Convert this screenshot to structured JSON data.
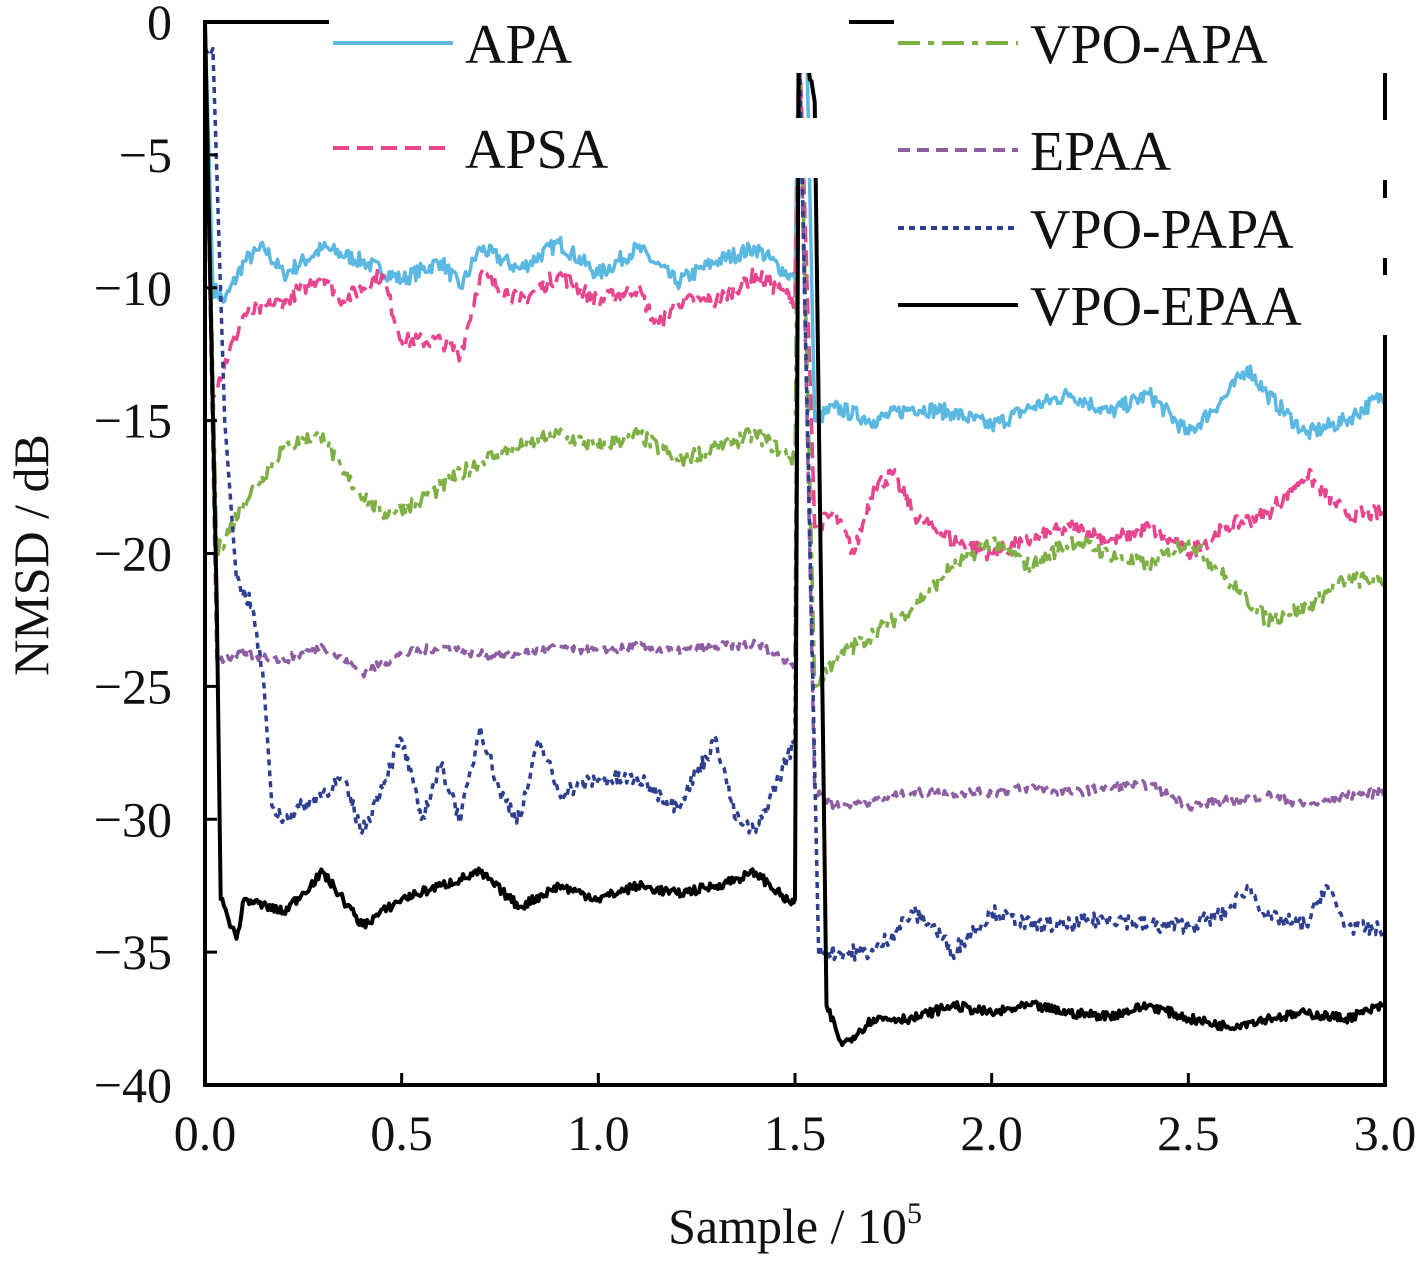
{
  "chart_data": {
    "type": "line",
    "title": "",
    "xlabel": "Sample / 10",
    "xlabel_sup": "5",
    "ylabel": "NMSD / dB",
    "xlim": [
      0,
      3
    ],
    "ylim": [
      -40,
      0
    ],
    "xticks": [
      "0.0",
      "0.5",
      "1.0",
      "1.5",
      "2.0",
      "2.5",
      "3.0"
    ],
    "xtick_values": [
      0,
      0.5,
      1,
      1.5,
      2,
      2.5,
      3
    ],
    "yticks": [
      "0",
      "−5",
      "−10",
      "−15",
      "−20",
      "−25",
      "−30",
      "−35",
      "−40"
    ],
    "ytick_values": [
      0,
      -5,
      -10,
      -15,
      -20,
      -25,
      -30,
      -35,
      -40
    ],
    "grid": false,
    "legend_placement": "top (two columns)",
    "series": [
      {
        "name": "APA",
        "color": "#5bb8e0",
        "dash": "solid",
        "points": [
          [
            0,
            0
          ],
          [
            0.02,
            -10
          ],
          [
            0.05,
            -10.5
          ],
          [
            0.1,
            -9
          ],
          [
            0.15,
            -8.5
          ],
          [
            0.2,
            -9.5
          ],
          [
            0.3,
            -8.5
          ],
          [
            0.4,
            -9
          ],
          [
            0.5,
            -9.7
          ],
          [
            0.6,
            -9
          ],
          [
            0.65,
            -10
          ],
          [
            0.7,
            -8.5
          ],
          [
            0.8,
            -9.3
          ],
          [
            0.9,
            -8.3
          ],
          [
            1.0,
            -9.5
          ],
          [
            1.1,
            -8.5
          ],
          [
            1.2,
            -9.8
          ],
          [
            1.3,
            -9
          ],
          [
            1.4,
            -8.5
          ],
          [
            1.5,
            -9.7
          ],
          [
            1.51,
            0
          ],
          [
            1.53,
            -1
          ],
          [
            1.55,
            -15
          ],
          [
            1.6,
            -14.5
          ],
          [
            1.7,
            -15
          ],
          [
            1.8,
            -14.5
          ],
          [
            1.9,
            -14.7
          ],
          [
            2.0,
            -15.2
          ],
          [
            2.1,
            -14.5
          ],
          [
            2.2,
            -14
          ],
          [
            2.3,
            -14.7
          ],
          [
            2.4,
            -14
          ],
          [
            2.5,
            -15.5
          ],
          [
            2.6,
            -14
          ],
          [
            2.65,
            -13
          ],
          [
            2.7,
            -14
          ],
          [
            2.8,
            -15.5
          ],
          [
            2.9,
            -15
          ],
          [
            3.0,
            -14
          ]
        ]
      },
      {
        "name": "APSA",
        "color": "#e8458f",
        "dash": "long-dash",
        "points": [
          [
            0,
            0
          ],
          [
            0.02,
            -14
          ],
          [
            0.1,
            -11
          ],
          [
            0.2,
            -10.5
          ],
          [
            0.3,
            -9.5
          ],
          [
            0.35,
            -10.5
          ],
          [
            0.45,
            -9.5
          ],
          [
            0.5,
            -12
          ],
          [
            0.6,
            -12
          ],
          [
            0.65,
            -12.5
          ],
          [
            0.7,
            -9.5
          ],
          [
            0.8,
            -10.5
          ],
          [
            0.9,
            -9.5
          ],
          [
            1.0,
            -10.5
          ],
          [
            1.1,
            -10
          ],
          [
            1.15,
            -11.5
          ],
          [
            1.2,
            -10.5
          ],
          [
            1.3,
            -10.5
          ],
          [
            1.4,
            -9.5
          ],
          [
            1.5,
            -10.5
          ],
          [
            1.51,
            0
          ],
          [
            1.55,
            -19
          ],
          [
            1.6,
            -18.5
          ],
          [
            1.65,
            -20
          ],
          [
            1.7,
            -17.5
          ],
          [
            1.75,
            -17
          ],
          [
            1.8,
            -18.5
          ],
          [
            1.9,
            -19.5
          ],
          [
            2.0,
            -20
          ],
          [
            2.1,
            -19.5
          ],
          [
            2.2,
            -19
          ],
          [
            2.3,
            -19.5
          ],
          [
            2.4,
            -19
          ],
          [
            2.5,
            -20
          ],
          [
            2.6,
            -19
          ],
          [
            2.7,
            -18.5
          ],
          [
            2.8,
            -17
          ],
          [
            2.9,
            -18.5
          ],
          [
            3.0,
            -18.5
          ]
        ]
      },
      {
        "name": "VPO-APA",
        "color": "#7fb046",
        "dash": "dash-dot",
        "points": [
          [
            0,
            0
          ],
          [
            0.03,
            -20
          ],
          [
            0.1,
            -18
          ],
          [
            0.2,
            -16
          ],
          [
            0.3,
            -15.5
          ],
          [
            0.35,
            -17
          ],
          [
            0.45,
            -18.5
          ],
          [
            0.55,
            -18
          ],
          [
            0.6,
            -17.5
          ],
          [
            0.7,
            -16.5
          ],
          [
            0.8,
            -16
          ],
          [
            0.9,
            -15.5
          ],
          [
            1.0,
            -16
          ],
          [
            1.1,
            -15.5
          ],
          [
            1.2,
            -16.5
          ],
          [
            1.3,
            -16
          ],
          [
            1.4,
            -15.5
          ],
          [
            1.5,
            -16.5
          ],
          [
            1.51,
            0
          ],
          [
            1.55,
            -25
          ],
          [
            1.6,
            -24
          ],
          [
            1.7,
            -23
          ],
          [
            1.8,
            -22
          ],
          [
            1.9,
            -20.5
          ],
          [
            2.0,
            -19.5
          ],
          [
            2.1,
            -20.5
          ],
          [
            2.2,
            -19.5
          ],
          [
            2.3,
            -20
          ],
          [
            2.4,
            -20.5
          ],
          [
            2.5,
            -19.5
          ],
          [
            2.6,
            -21
          ],
          [
            2.7,
            -22.5
          ],
          [
            2.8,
            -22
          ],
          [
            2.9,
            -21
          ],
          [
            3.0,
            -21
          ]
        ]
      },
      {
        "name": "EPAA",
        "color": "#8e5ea2",
        "dash": "dash",
        "points": [
          [
            0,
            0
          ],
          [
            0.03,
            -24
          ],
          [
            0.1,
            -23.8
          ],
          [
            0.2,
            -24
          ],
          [
            0.3,
            -23.5
          ],
          [
            0.4,
            -24.5
          ],
          [
            0.5,
            -23.8
          ],
          [
            0.6,
            -23.5
          ],
          [
            0.7,
            -23.8
          ],
          [
            0.8,
            -23.8
          ],
          [
            0.9,
            -23.5
          ],
          [
            1.0,
            -23.7
          ],
          [
            1.1,
            -23.5
          ],
          [
            1.2,
            -23.7
          ],
          [
            1.3,
            -23.5
          ],
          [
            1.4,
            -23.4
          ],
          [
            1.5,
            -24.2
          ],
          [
            1.51,
            0
          ],
          [
            1.55,
            -29
          ],
          [
            1.6,
            -29.5
          ],
          [
            1.7,
            -29.3
          ],
          [
            1.8,
            -29
          ],
          [
            1.9,
            -29
          ],
          [
            2.0,
            -29
          ],
          [
            2.1,
            -28.8
          ],
          [
            2.2,
            -29
          ],
          [
            2.3,
            -28.8
          ],
          [
            2.4,
            -28.7
          ],
          [
            2.5,
            -29.5
          ],
          [
            2.6,
            -29.3
          ],
          [
            2.7,
            -29.1
          ],
          [
            2.8,
            -29.5
          ],
          [
            2.9,
            -29.1
          ],
          [
            3.0,
            -29
          ]
        ]
      },
      {
        "name": "VPO-PAPA",
        "color": "#2e3f8f",
        "dash": "dot",
        "points": [
          [
            0,
            -1
          ],
          [
            0.02,
            -1
          ],
          [
            0.05,
            -15
          ],
          [
            0.08,
            -21
          ],
          [
            0.12,
            -22
          ],
          [
            0.15,
            -25
          ],
          [
            0.17,
            -29.5
          ],
          [
            0.2,
            -30
          ],
          [
            0.3,
            -29
          ],
          [
            0.35,
            -28.5
          ],
          [
            0.4,
            -30.5
          ],
          [
            0.5,
            -27
          ],
          [
            0.55,
            -30
          ],
          [
            0.6,
            -28
          ],
          [
            0.65,
            -30
          ],
          [
            0.7,
            -26.5
          ],
          [
            0.75,
            -29
          ],
          [
            0.8,
            -30
          ],
          [
            0.85,
            -27
          ],
          [
            0.9,
            -29
          ],
          [
            1.0,
            -28.5
          ],
          [
            1.1,
            -28.5
          ],
          [
            1.2,
            -29.5
          ],
          [
            1.3,
            -27
          ],
          [
            1.35,
            -30
          ],
          [
            1.4,
            -30.5
          ],
          [
            1.5,
            -27
          ],
          [
            1.51,
            0
          ],
          [
            1.56,
            -35
          ],
          [
            1.7,
            -35
          ],
          [
            1.8,
            -33.5
          ],
          [
            1.85,
            -34
          ],
          [
            1.9,
            -35
          ],
          [
            2.0,
            -33.5
          ],
          [
            2.1,
            -34
          ],
          [
            2.2,
            -34
          ],
          [
            2.3,
            -33.7
          ],
          [
            2.4,
            -34
          ],
          [
            2.5,
            -34
          ],
          [
            2.6,
            -33.5
          ],
          [
            2.65,
            -32.5
          ],
          [
            2.7,
            -33.7
          ],
          [
            2.8,
            -34
          ],
          [
            2.85,
            -32.5
          ],
          [
            2.9,
            -34
          ],
          [
            3.0,
            -34.2
          ]
        ]
      },
      {
        "name": "VPO-EPAA",
        "color": "#000000",
        "dash": "solid",
        "points": [
          [
            0,
            0
          ],
          [
            0.03,
            -22
          ],
          [
            0.04,
            -33
          ],
          [
            0.08,
            -34.5
          ],
          [
            0.1,
            -33
          ],
          [
            0.2,
            -33.5
          ],
          [
            0.3,
            -32
          ],
          [
            0.4,
            -34
          ],
          [
            0.5,
            -33
          ],
          [
            0.6,
            -32.5
          ],
          [
            0.7,
            -32
          ],
          [
            0.8,
            -33.3
          ],
          [
            0.9,
            -32.5
          ],
          [
            1.0,
            -33
          ],
          [
            1.1,
            -32.5
          ],
          [
            1.2,
            -32.8
          ],
          [
            1.3,
            -32.5
          ],
          [
            1.4,
            -32
          ],
          [
            1.49,
            -33.2
          ],
          [
            1.5,
            -33
          ],
          [
            1.51,
            0
          ],
          [
            1.55,
            -3
          ],
          [
            1.58,
            -37
          ],
          [
            1.62,
            -38.5
          ],
          [
            1.7,
            -37.5
          ],
          [
            1.8,
            -37.5
          ],
          [
            1.9,
            -37
          ],
          [
            2.0,
            -37.3
          ],
          [
            2.1,
            -37
          ],
          [
            2.2,
            -37.3
          ],
          [
            2.3,
            -37.4
          ],
          [
            2.4,
            -37
          ],
          [
            2.5,
            -37.5
          ],
          [
            2.6,
            -37.8
          ],
          [
            2.7,
            -37.5
          ],
          [
            2.8,
            -37.3
          ],
          [
            2.9,
            -37.5
          ],
          [
            3.0,
            -37
          ]
        ]
      }
    ]
  }
}
